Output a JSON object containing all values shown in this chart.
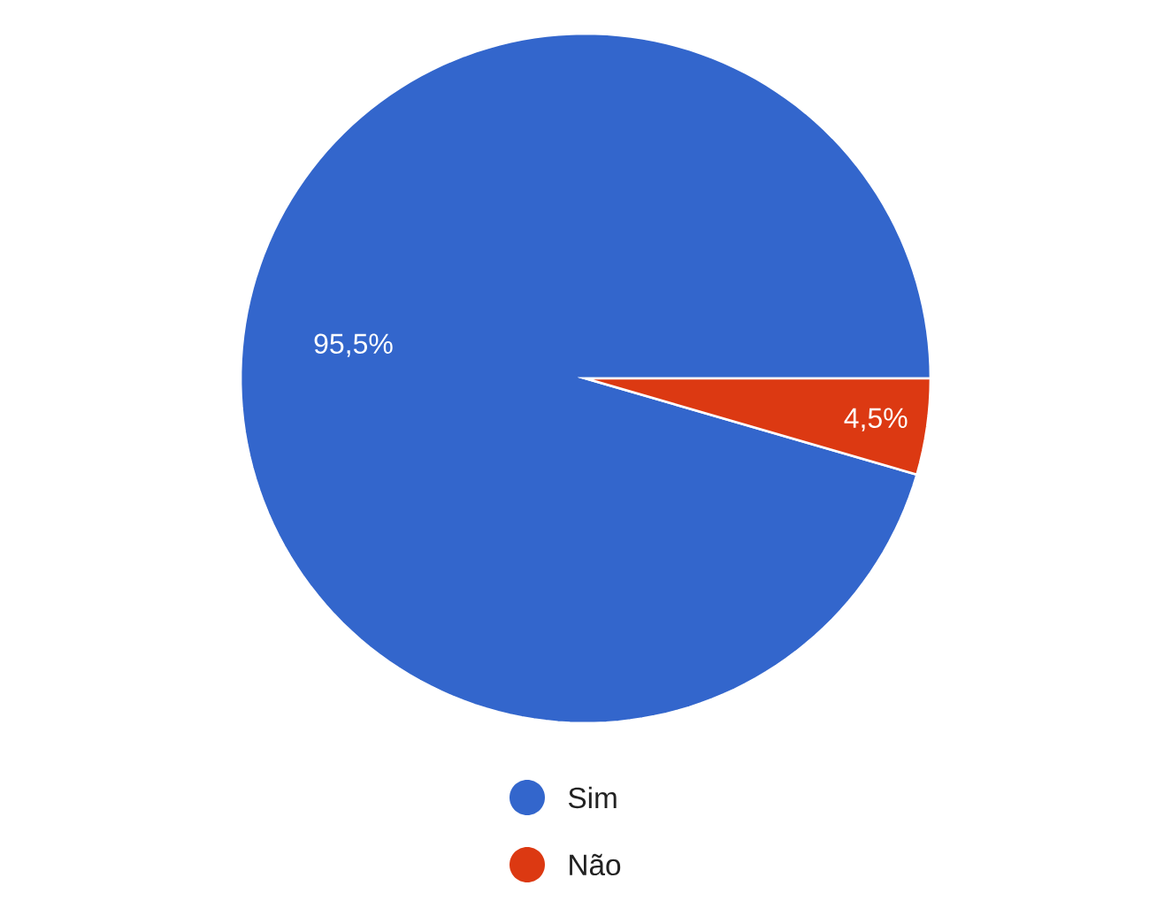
{
  "chart_data": {
    "type": "pie",
    "categories": [
      "Sim",
      "Não"
    ],
    "values": [
      95.5,
      4.5
    ],
    "colors": [
      "#3366cc",
      "#dc3912"
    ],
    "value_labels": [
      "95,5%",
      "4,5%"
    ],
    "legend": "bottom"
  }
}
